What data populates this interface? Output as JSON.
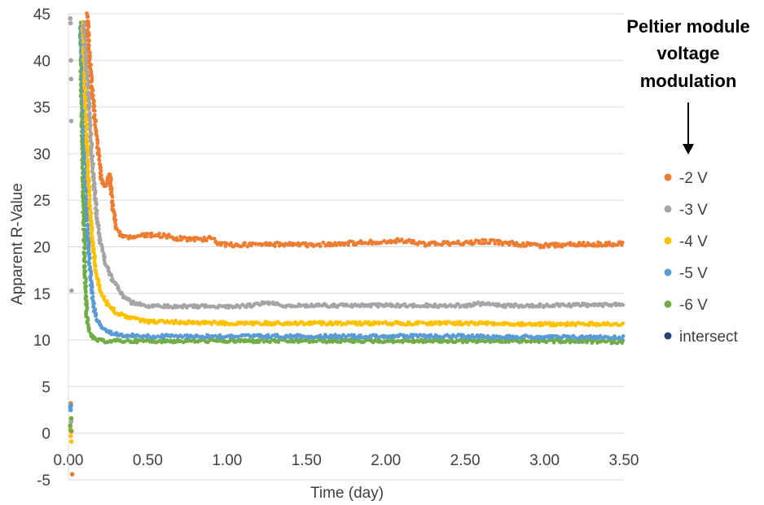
{
  "chart_data": {
    "type": "scatter",
    "xlabel": "Time (day)",
    "ylabel": "Apparent R-Value",
    "xlim": [
      0,
      3.5
    ],
    "ylim": [
      -5,
      45
    ],
    "x_ticks": [
      "0.00",
      "0.50",
      "1.00",
      "1.50",
      "2.00",
      "2.50",
      "3.00",
      "3.50"
    ],
    "y_ticks": [
      "-5",
      "0",
      "5",
      "10",
      "15",
      "20",
      "25",
      "30",
      "35",
      "40",
      "45"
    ],
    "grid": "horizontal",
    "legend_position": "right",
    "annotation": [
      "Peltier module",
      "voltage",
      "modulation"
    ],
    "series": [
      {
        "name": "-2 V",
        "color": "#ED7D31",
        "points": [
          [
            0.12,
            45
          ],
          [
            0.13,
            41
          ],
          [
            0.15,
            37
          ],
          [
            0.17,
            33
          ],
          [
            0.19,
            30
          ],
          [
            0.21,
            27
          ],
          [
            0.24,
            26.5
          ],
          [
            0.26,
            27.8
          ],
          [
            0.28,
            24
          ],
          [
            0.3,
            22
          ],
          [
            0.33,
            21.2
          ],
          [
            0.4,
            21
          ],
          [
            0.5,
            21.3
          ],
          [
            0.6,
            21.2
          ],
          [
            0.7,
            20.9
          ],
          [
            0.8,
            20.8
          ],
          [
            0.9,
            20.9
          ],
          [
            0.95,
            20.3
          ],
          [
            1.0,
            20.2
          ],
          [
            1.25,
            20.3
          ],
          [
            1.5,
            20.2
          ],
          [
            1.75,
            20.4
          ],
          [
            2.0,
            20.5
          ],
          [
            2.1,
            20.7
          ],
          [
            2.25,
            20.3
          ],
          [
            2.5,
            20.4
          ],
          [
            2.65,
            20.6
          ],
          [
            2.75,
            20.4
          ],
          [
            3.0,
            20.1
          ],
          [
            3.25,
            20.3
          ],
          [
            3.5,
            20.3
          ]
        ]
      },
      {
        "name": "-3 V",
        "color": "#A5A5A5",
        "points": [
          [
            0.1,
            44
          ],
          [
            0.12,
            38
          ],
          [
            0.14,
            32
          ],
          [
            0.16,
            27
          ],
          [
            0.18,
            23
          ],
          [
            0.2,
            20.5
          ],
          [
            0.23,
            18.5
          ],
          [
            0.26,
            17
          ],
          [
            0.3,
            15.8
          ],
          [
            0.35,
            14.7
          ],
          [
            0.4,
            14
          ],
          [
            0.5,
            13.6
          ],
          [
            0.75,
            13.6
          ],
          [
            1.0,
            13.6
          ],
          [
            1.15,
            13.7
          ],
          [
            1.25,
            14
          ],
          [
            1.35,
            13.7
          ],
          [
            1.5,
            13.7
          ],
          [
            2.0,
            13.7
          ],
          [
            2.5,
            13.7
          ],
          [
            2.6,
            13.9
          ],
          [
            2.7,
            13.7
          ],
          [
            3.0,
            13.7
          ],
          [
            3.5,
            13.8
          ]
        ]
      },
      {
        "name": "-4 V",
        "color": "#FFC000",
        "points": [
          [
            0.09,
            44
          ],
          [
            0.11,
            34
          ],
          [
            0.13,
            26
          ],
          [
            0.15,
            21
          ],
          [
            0.17,
            17.5
          ],
          [
            0.2,
            15.2
          ],
          [
            0.25,
            13.8
          ],
          [
            0.3,
            13
          ],
          [
            0.4,
            12.3
          ],
          [
            0.5,
            12
          ],
          [
            0.75,
            11.9
          ],
          [
            1.0,
            11.8
          ],
          [
            1.5,
            11.8
          ],
          [
            2.0,
            11.8
          ],
          [
            2.5,
            11.8
          ],
          [
            3.0,
            11.7
          ],
          [
            3.5,
            11.7
          ]
        ]
      },
      {
        "name": "-5 V",
        "color": "#5B9BD5",
        "points": [
          [
            0.08,
            44
          ],
          [
            0.1,
            32
          ],
          [
            0.12,
            22
          ],
          [
            0.14,
            16.5
          ],
          [
            0.16,
            13.5
          ],
          [
            0.18,
            12.2
          ],
          [
            0.22,
            11.2
          ],
          [
            0.28,
            10.7
          ],
          [
            0.35,
            10.5
          ],
          [
            0.5,
            10.4
          ],
          [
            1.0,
            10.4
          ],
          [
            1.5,
            10.4
          ],
          [
            2.0,
            10.4
          ],
          [
            2.5,
            10.4
          ],
          [
            3.0,
            10.3
          ],
          [
            3.5,
            10.3
          ]
        ]
      },
      {
        "name": "-6 V",
        "color": "#70AD47",
        "points": [
          [
            0.075,
            44
          ],
          [
            0.085,
            34
          ],
          [
            0.095,
            24
          ],
          [
            0.105,
            17
          ],
          [
            0.115,
            12.5
          ],
          [
            0.13,
            10.8
          ],
          [
            0.16,
            10.1
          ],
          [
            0.2,
            9.9
          ],
          [
            0.5,
            9.9
          ],
          [
            1.0,
            9.9
          ],
          [
            1.5,
            9.9
          ],
          [
            2.0,
            9.9
          ],
          [
            2.5,
            9.9
          ],
          [
            3.0,
            9.9
          ],
          [
            3.5,
            9.8
          ]
        ]
      },
      {
        "name": "intersect",
        "color": "#264478",
        "points": []
      }
    ],
    "early_points": [
      {
        "series": "-2 V",
        "points": [
          [
            0.015,
            3.2
          ],
          [
            0.018,
            1.5
          ],
          [
            0.02,
            0.2
          ],
          [
            0.024,
            -4.4
          ]
        ]
      },
      {
        "series": "-3 V",
        "points": [
          [
            0.012,
            44.5
          ],
          [
            0.014,
            44
          ],
          [
            0.016,
            40
          ],
          [
            0.017,
            38
          ],
          [
            0.018,
            33.5
          ],
          [
            0.02,
            15.3
          ],
          [
            0.014,
            2.5
          ],
          [
            0.017,
            1.2
          ]
        ]
      },
      {
        "series": "-4 V",
        "points": [
          [
            0.012,
            0.5
          ],
          [
            0.015,
            -0.3
          ],
          [
            0.018,
            -0.9
          ]
        ]
      },
      {
        "series": "-5 V",
        "points": [
          [
            0.012,
            2.8
          ],
          [
            0.014,
            2.5
          ],
          [
            0.016,
            3.0
          ]
        ]
      },
      {
        "series": "-6 V",
        "points": [
          [
            0.012,
            0.8
          ],
          [
            0.015,
            0.3
          ],
          [
            0.018,
            1.6
          ]
        ]
      }
    ]
  }
}
